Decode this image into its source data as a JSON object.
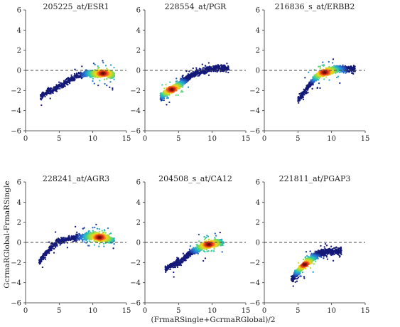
{
  "figure": {
    "ylabel": "GcrmaRGlobal-FrmaRSingle",
    "xlabel": "(FrmaRSingle+GcrmaRGlobal)/2"
  },
  "chart_data": [
    {
      "type": "scatter",
      "title": "205225_at/ESR1",
      "xlim": [
        0,
        15
      ],
      "ylim": [
        -6,
        6
      ],
      "xticks": [
        0,
        5,
        10,
        15
      ],
      "yticks": [
        -6,
        -4,
        -2,
        0,
        2,
        4,
        6
      ],
      "reference_line_y": 0,
      "points": [
        [
          2.2,
          -2.6
        ],
        [
          2.6,
          -2.4
        ],
        [
          3.0,
          -2.3
        ],
        [
          3.4,
          -2.1
        ],
        [
          3.8,
          -2.0
        ],
        [
          4.2,
          -1.9
        ],
        [
          4.6,
          -1.8
        ],
        [
          5.0,
          -1.6
        ],
        [
          5.5,
          -1.4
        ],
        [
          6.0,
          -1.2
        ],
        [
          6.5,
          -1.0
        ],
        [
          7.0,
          -0.8
        ],
        [
          7.5,
          -0.6
        ],
        [
          8.0,
          -0.5
        ],
        [
          8.5,
          -0.4
        ],
        [
          9.0,
          -0.3
        ],
        [
          9.5,
          -0.3
        ],
        [
          10.0,
          -0.3
        ],
        [
          10.5,
          -0.3
        ],
        [
          11.0,
          -0.3
        ],
        [
          11.5,
          -0.3
        ],
        [
          12.0,
          -0.3
        ],
        [
          12.5,
          -0.4
        ],
        [
          13.0,
          -0.5
        ]
      ],
      "dense_center": [
        11.5,
        -0.3
      ]
    },
    {
      "type": "scatter",
      "title": "228554_at/PGR",
      "xlim": [
        0,
        15
      ],
      "ylim": [
        -6,
        6
      ],
      "xticks": [
        0,
        5,
        10,
        15
      ],
      "yticks": [
        -6,
        -4,
        -2,
        0,
        2,
        4,
        6
      ],
      "reference_line_y": 0,
      "points": [
        [
          2.5,
          -2.6
        ],
        [
          3.0,
          -2.3
        ],
        [
          3.5,
          -2.0
        ],
        [
          4.0,
          -1.9
        ],
        [
          4.5,
          -1.7
        ],
        [
          5.0,
          -1.5
        ],
        [
          5.5,
          -1.2
        ],
        [
          6.0,
          -1.0
        ],
        [
          6.5,
          -0.7
        ],
        [
          7.0,
          -0.5
        ],
        [
          7.5,
          -0.3
        ],
        [
          8.0,
          -0.2
        ],
        [
          8.5,
          -0.1
        ],
        [
          9.0,
          0.0
        ],
        [
          9.5,
          0.1
        ],
        [
          10.0,
          0.1
        ],
        [
          10.5,
          0.2
        ],
        [
          11.0,
          0.2
        ],
        [
          11.5,
          0.2
        ],
        [
          12.0,
          0.2
        ],
        [
          12.5,
          0.1
        ]
      ],
      "dense_center": [
        4.0,
        -1.9
      ]
    },
    {
      "type": "scatter",
      "title": "216836_s_at/ERBB2",
      "xlim": [
        0,
        15
      ],
      "ylim": [
        -6,
        6
      ],
      "xticks": [
        0,
        5,
        10,
        15
      ],
      "yticks": [
        -6,
        -4,
        -2,
        0,
        2,
        4,
        6
      ],
      "reference_line_y": 0,
      "points": [
        [
          5.0,
          -3.0
        ],
        [
          5.5,
          -2.5
        ],
        [
          6.0,
          -2.1
        ],
        [
          6.5,
          -1.7
        ],
        [
          7.0,
          -1.2
        ],
        [
          7.5,
          -0.8
        ],
        [
          8.0,
          -0.5
        ],
        [
          8.5,
          -0.3
        ],
        [
          9.0,
          -0.2
        ],
        [
          9.5,
          -0.1
        ],
        [
          10.0,
          0.0
        ],
        [
          10.5,
          0.1
        ],
        [
          11.0,
          0.1
        ],
        [
          11.5,
          0.1
        ],
        [
          12.0,
          0.1
        ],
        [
          12.5,
          0.1
        ],
        [
          13.0,
          0.1
        ],
        [
          13.5,
          0.1
        ]
      ],
      "dense_center": [
        9.0,
        -0.2
      ]
    },
    {
      "type": "scatter",
      "title": "228241_at/AGR3",
      "xlim": [
        0,
        15
      ],
      "ylim": [
        -6,
        6
      ],
      "xticks": [
        0,
        5,
        10,
        15
      ],
      "yticks": [
        -6,
        -4,
        -2,
        0,
        2,
        4,
        6
      ],
      "reference_line_y": 0,
      "points": [
        [
          2.0,
          -1.9
        ],
        [
          2.5,
          -1.5
        ],
        [
          3.0,
          -1.1
        ],
        [
          3.5,
          -0.7
        ],
        [
          4.0,
          -0.4
        ],
        [
          4.5,
          -0.1
        ],
        [
          5.0,
          0.1
        ],
        [
          5.5,
          0.2
        ],
        [
          6.0,
          0.3
        ],
        [
          6.5,
          0.4
        ],
        [
          7.0,
          0.4
        ],
        [
          7.5,
          0.5
        ],
        [
          8.0,
          0.5
        ],
        [
          8.5,
          0.6
        ],
        [
          9.0,
          0.6
        ],
        [
          9.5,
          0.6
        ],
        [
          10.0,
          0.6
        ],
        [
          10.5,
          0.6
        ],
        [
          11.0,
          0.5
        ],
        [
          11.5,
          0.5
        ],
        [
          12.0,
          0.4
        ],
        [
          12.5,
          0.3
        ],
        [
          13.0,
          0.2
        ]
      ],
      "dense_center": [
        11.0,
        0.5
      ]
    },
    {
      "type": "scatter",
      "title": "204508_s_at/CA12",
      "xlim": [
        0,
        15
      ],
      "ylim": [
        -6,
        6
      ],
      "xticks": [
        0,
        5,
        10,
        15
      ],
      "yticks": [
        -6,
        -4,
        -2,
        0,
        2,
        4,
        6
      ],
      "reference_line_y": 0,
      "points": [
        [
          3.0,
          -2.7
        ],
        [
          3.5,
          -2.5
        ],
        [
          4.0,
          -2.3
        ],
        [
          4.5,
          -2.1
        ],
        [
          5.0,
          -2.0
        ],
        [
          5.5,
          -1.8
        ],
        [
          6.0,
          -1.5
        ],
        [
          6.5,
          -1.2
        ],
        [
          7.0,
          -1.0
        ],
        [
          7.5,
          -0.8
        ],
        [
          8.0,
          -0.6
        ],
        [
          8.5,
          -0.4
        ],
        [
          9.0,
          -0.3
        ],
        [
          9.5,
          -0.2
        ],
        [
          10.0,
          -0.1
        ],
        [
          10.5,
          -0.1
        ],
        [
          11.0,
          0.0
        ],
        [
          11.5,
          0.0
        ]
      ],
      "dense_center": [
        9.5,
        -0.2
      ]
    },
    {
      "type": "scatter",
      "title": "221811_at/PGAP3",
      "xlim": [
        0,
        15
      ],
      "ylim": [
        -6,
        6
      ],
      "xticks": [
        0,
        5,
        10,
        15
      ],
      "yticks": [
        -6,
        -4,
        -2,
        0,
        2,
        4,
        6
      ],
      "reference_line_y": 0,
      "points": [
        [
          4.2,
          -3.6
        ],
        [
          4.6,
          -3.2
        ],
        [
          5.0,
          -2.9
        ],
        [
          5.5,
          -2.5
        ],
        [
          6.0,
          -2.2
        ],
        [
          6.5,
          -1.9
        ],
        [
          7.0,
          -1.6
        ],
        [
          7.5,
          -1.4
        ],
        [
          8.0,
          -1.2
        ],
        [
          8.5,
          -1.1
        ],
        [
          9.0,
          -1.0
        ],
        [
          9.5,
          -0.9
        ],
        [
          10.0,
          -0.9
        ],
        [
          10.5,
          -0.9
        ],
        [
          11.0,
          -0.9
        ],
        [
          11.5,
          -0.8
        ]
      ],
      "dense_center": [
        6.0,
        -2.2
      ]
    }
  ]
}
